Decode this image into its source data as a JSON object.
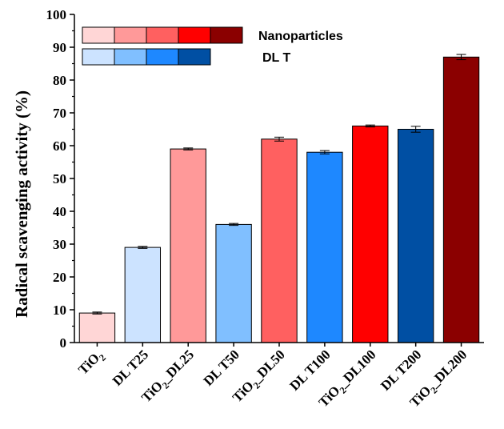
{
  "chart_data": {
    "type": "bar",
    "ylabel": "Radical scavenging activity (%)",
    "xlabel": "",
    "ylim": [
      0,
      100
    ],
    "yticks": [
      0,
      10,
      20,
      30,
      40,
      50,
      60,
      70,
      80,
      90,
      100
    ],
    "categories": [
      {
        "label": "TiO₂",
        "base": "TiO",
        "sub": "2",
        "suffix": ""
      },
      {
        "label": "DL T25",
        "base": "DL T25",
        "sub": "",
        "suffix": ""
      },
      {
        "label": "TiO₂_DL25",
        "base": "TiO",
        "sub": "2",
        "suffix": "_DL25"
      },
      {
        "label": "DL T50",
        "base": "DL T50",
        "sub": "",
        "suffix": ""
      },
      {
        "label": "TiO₂_DL50",
        "base": "TiO",
        "sub": "2",
        "suffix": "_DL50"
      },
      {
        "label": "DL T100",
        "base": "DL T100",
        "sub": "",
        "suffix": ""
      },
      {
        "label": "TiO₂_DL100",
        "base": "TiO",
        "sub": "2",
        "suffix": "_DL100"
      },
      {
        "label": "DL T200",
        "base": "DL T200",
        "sub": "",
        "suffix": ""
      },
      {
        "label": "TiO₂_DL200",
        "base": "TiO",
        "sub": "2",
        "suffix": "_DL200"
      }
    ],
    "values": [
      9,
      29,
      59,
      36,
      62,
      58,
      66,
      65,
      87
    ],
    "errors": [
      0.3,
      0.3,
      0.3,
      0.3,
      0.6,
      0.5,
      0.3,
      0.9,
      0.8
    ],
    "colors": [
      "#ffd6d6",
      "#cce3ff",
      "#ff9999",
      "#80bfff",
      "#ff6060",
      "#1e88ff",
      "#ff0000",
      "#004fa3",
      "#8b0000"
    ],
    "legend": {
      "placement": "top-left",
      "entries": [
        {
          "name": "Nanoparticles",
          "colors": [
            "#ffd6d6",
            "#ff9999",
            "#ff6060",
            "#ff0000",
            "#8b0000"
          ]
        },
        {
          "name": "DL T",
          "colors": [
            "#cce3ff",
            "#80bfff",
            "#1e88ff",
            "#004fa3"
          ]
        }
      ]
    },
    "grid": false
  }
}
